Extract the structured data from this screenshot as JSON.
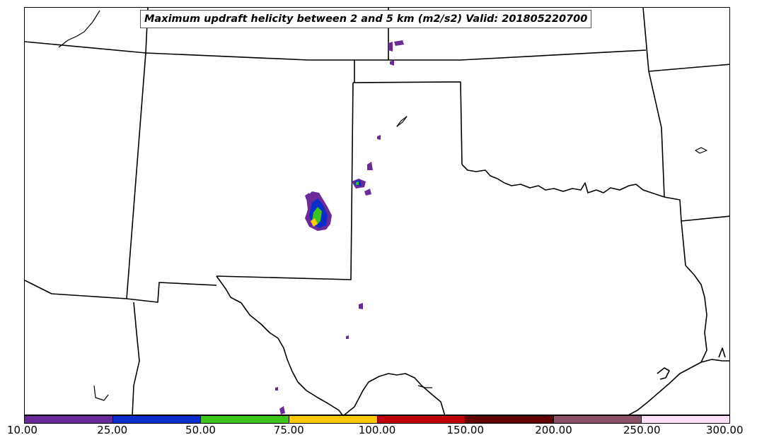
{
  "title": "Maximum updraft helicity between 2 and 5 km (m2/s2) Valid: 201805220700",
  "colorbar": {
    "ticks": [
      "10.00",
      "25.00",
      "50.00",
      "75.00",
      "100.00",
      "150.00",
      "200.00",
      "250.00",
      "300.00"
    ],
    "colors": [
      "#6a2a9a",
      "#0a2ecc",
      "#3cc41a",
      "#ffc800",
      "#c00000",
      "#600000",
      "#8a5068",
      "#fce0f8"
    ]
  },
  "map": {
    "features": [
      "state-borders",
      "coastline",
      "updraft-helicity-contours"
    ]
  }
}
